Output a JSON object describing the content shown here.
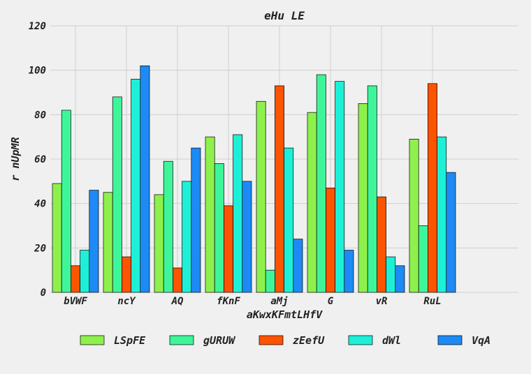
{
  "chart_data": {
    "type": "bar",
    "title": "eHu LE",
    "xlabel": "aKwxKFmtLHfV",
    "ylabel": "r nUpMR",
    "ylim": [
      0,
      120
    ],
    "yticks": [
      0,
      20,
      40,
      60,
      80,
      100,
      120
    ],
    "grid": true,
    "legend_position": "bottom",
    "categories": [
      "bVWF",
      "ncY",
      "AQ",
      "fKnF",
      "aMj",
      "G",
      "vR",
      "RuL"
    ],
    "series": [
      {
        "name": "LSpFE",
        "color": "#8ef04c",
        "values": [
          49,
          45,
          44,
          70,
          86,
          81,
          85,
          69
        ]
      },
      {
        "name": "gURUW",
        "color": "#3ff59a",
        "values": [
          82,
          88,
          59,
          58,
          10,
          98,
          93,
          30
        ]
      },
      {
        "name": "zEefU",
        "color": "#fd5400",
        "values": [
          12,
          16,
          11,
          39,
          93,
          47,
          43,
          94
        ]
      },
      {
        "name": "dWl",
        "color": "#1df0d6",
        "values": [
          19,
          96,
          50,
          71,
          65,
          95,
          16,
          70
        ]
      },
      {
        "name": "VqA",
        "color": "#1e8af5",
        "values": [
          46,
          102,
          65,
          50,
          24,
          19,
          12,
          54
        ]
      }
    ]
  }
}
